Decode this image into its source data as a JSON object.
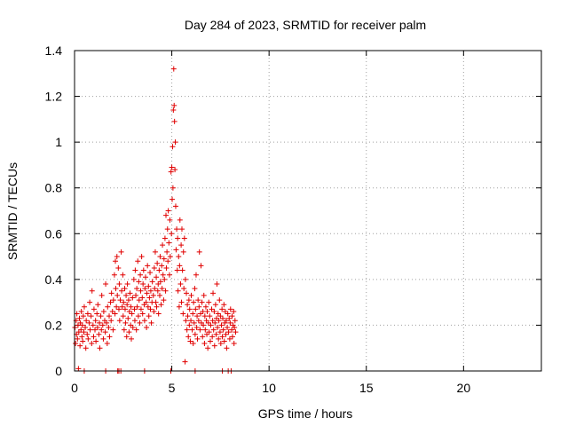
{
  "chart_data": {
    "type": "scatter",
    "title": "Day 284 of 2023, SRMTID for receiver palm",
    "xlabel": "GPS time / hours",
    "ylabel": "SRMTID / TECUs",
    "xlim": [
      0,
      24
    ],
    "ylim": [
      0,
      1.4
    ],
    "xticks": [
      0,
      5,
      10,
      15,
      20
    ],
    "xtick_labels": [
      "0",
      "5",
      "10",
      "15",
      "20"
    ],
    "yticks": [
      0,
      0.2,
      0.4,
      0.6,
      0.8,
      1.0,
      1.2,
      1.4
    ],
    "ytick_labels": [
      "0",
      "0.2",
      "0.4",
      "0.6",
      "0.8",
      "1",
      "1.2",
      "1.4"
    ],
    "grid": true,
    "marker": "plus",
    "color": "#e00000",
    "series": [
      {
        "name": "SRMTID",
        "points": [
          [
            0.02,
            0.19
          ],
          [
            0.05,
            0.12
          ],
          [
            0.08,
            0.22
          ],
          [
            0.1,
            0.16
          ],
          [
            0.12,
            0.25
          ],
          [
            0.15,
            0.14
          ],
          [
            0.18,
            0.2
          ],
          [
            0.2,
            0.01
          ],
          [
            0.22,
            0.17
          ],
          [
            0.25,
            0.23
          ],
          [
            0.28,
            0.11
          ],
          [
            0.3,
            0.21
          ],
          [
            0.33,
            0.18
          ],
          [
            0.35,
            0.26
          ],
          [
            0.38,
            0.15
          ],
          [
            0.4,
            0.2
          ],
          [
            0.42,
            0.13
          ],
          [
            0.45,
            0.24
          ],
          [
            0.48,
            0.17
          ],
          [
            0.5,
            0.28
          ],
          [
            0.55,
            0.19
          ],
          [
            0.58,
            0.1
          ],
          [
            0.6,
            0.22
          ],
          [
            0.65,
            0.16
          ],
          [
            0.68,
            0.25
          ],
          [
            0.7,
            0.14
          ],
          [
            0.75,
            0.21
          ],
          [
            0.78,
            0.3
          ],
          [
            0.8,
            0.18
          ],
          [
            0.85,
            0.24
          ],
          [
            0.88,
            0.12
          ],
          [
            0.9,
            0.35
          ],
          [
            0.95,
            0.2
          ],
          [
            0.98,
            0.15
          ],
          [
            1.0,
            0.27
          ],
          [
            1.05,
            0.18
          ],
          [
            1.08,
            0.22
          ],
          [
            1.1,
            0.13
          ],
          [
            1.15,
            0.25
          ],
          [
            1.18,
            0.19
          ],
          [
            1.2,
            0.29
          ],
          [
            1.25,
            0.16
          ],
          [
            1.28,
            0.21
          ],
          [
            1.3,
            0.1
          ],
          [
            1.35,
            0.24
          ],
          [
            1.38,
            0.18
          ],
          [
            1.4,
            0.33
          ],
          [
            1.45,
            0.2
          ],
          [
            1.48,
            0.14
          ],
          [
            1.5,
            0.26
          ],
          [
            1.55,
            0.22
          ],
          [
            1.58,
            0.17
          ],
          [
            1.6,
            0.38
          ],
          [
            1.65,
            0.21
          ],
          [
            1.68,
            0.12
          ],
          [
            1.7,
            0.28
          ],
          [
            1.75,
            0.19
          ],
          [
            1.78,
            0.24
          ],
          [
            1.8,
            0.15
          ],
          [
            1.85,
            0.3
          ],
          [
            1.88,
            0.22
          ],
          [
            1.9,
            0.34
          ],
          [
            1.95,
            0.26
          ],
          [
            1.98,
            0.18
          ],
          [
            2.0,
            0.31
          ],
          [
            2.05,
            0.42
          ],
          [
            2.08,
            0.25
          ],
          [
            2.1,
            0.48
          ],
          [
            2.12,
            0.36
          ],
          [
            2.15,
            0.28
          ],
          [
            2.18,
            0.5
          ],
          [
            2.2,
            0.33
          ],
          [
            2.22,
            0.0
          ],
          [
            2.25,
            0.45
          ],
          [
            2.28,
            0.27
          ],
          [
            2.3,
            0.38
          ],
          [
            2.32,
            0.22
          ],
          [
            2.35,
            0.31
          ],
          [
            2.38,
            0.0
          ],
          [
            2.4,
            0.52
          ],
          [
            2.42,
            0.35
          ],
          [
            2.45,
            0.28
          ],
          [
            2.48,
            0.42
          ],
          [
            2.5,
            0.24
          ],
          [
            2.52,
            0.3
          ],
          [
            2.55,
            0.18
          ],
          [
            2.58,
            0.36
          ],
          [
            2.6,
            0.27
          ],
          [
            2.62,
            0.21
          ],
          [
            2.65,
            0.33
          ],
          [
            2.68,
            0.15
          ],
          [
            2.7,
            0.29
          ],
          [
            2.72,
            0.38
          ],
          [
            2.75,
            0.23
          ],
          [
            2.78,
            0.31
          ],
          [
            2.8,
            0.17
          ],
          [
            2.82,
            0.26
          ],
          [
            2.85,
            0.34
          ],
          [
            2.88,
            0.2
          ],
          [
            2.9,
            0.28
          ],
          [
            2.92,
            0.14
          ],
          [
            2.95,
            0.25
          ],
          [
            2.98,
            0.32
          ],
          [
            3.0,
            0.19
          ],
          [
            3.05,
            0.4
          ],
          [
            3.08,
            0.27
          ],
          [
            3.1,
            0.22
          ],
          [
            3.12,
            0.44
          ],
          [
            3.15,
            0.33
          ],
          [
            3.18,
            0.18
          ],
          [
            3.2,
            0.36
          ],
          [
            3.22,
            0.28
          ],
          [
            3.25,
            0.48
          ],
          [
            3.28,
            0.24
          ],
          [
            3.3,
            0.39
          ],
          [
            3.32,
            0.31
          ],
          [
            3.35,
            0.21
          ],
          [
            3.38,
            0.42
          ],
          [
            3.4,
            0.35
          ],
          [
            3.42,
            0.27
          ],
          [
            3.45,
            0.5
          ],
          [
            3.48,
            0.32
          ],
          [
            3.5,
            0.25
          ],
          [
            3.52,
            0.38
          ],
          [
            3.55,
            0.44
          ],
          [
            3.58,
            0.29
          ],
          [
            3.6,
            0.22
          ],
          [
            3.62,
            0.36
          ],
          [
            3.65,
            0.41
          ],
          [
            3.68,
            0.3
          ],
          [
            3.7,
            0.19
          ],
          [
            3.72,
            0.34
          ],
          [
            3.75,
            0.46
          ],
          [
            3.78,
            0.28
          ],
          [
            3.8,
            0.37
          ],
          [
            3.82,
            0.24
          ],
          [
            3.85,
            0.32
          ],
          [
            3.88,
            0.43
          ],
          [
            3.9,
            0.27
          ],
          [
            3.92,
            0.35
          ],
          [
            3.95,
            0.21
          ],
          [
            3.98,
            0.3
          ],
          [
            4.0,
            0.39
          ],
          [
            4.05,
            0.33
          ],
          [
            4.08,
            0.26
          ],
          [
            4.1,
            0.45
          ],
          [
            4.12,
            0.36
          ],
          [
            4.15,
            0.52
          ],
          [
            4.18,
            0.3
          ],
          [
            4.2,
            0.41
          ],
          [
            4.22,
            0.28
          ],
          [
            4.25,
            0.47
          ],
          [
            4.28,
            0.35
          ],
          [
            4.3,
            0.38
          ],
          [
            4.32,
            0.25
          ],
          [
            4.35,
            0.44
          ],
          [
            4.38,
            0.33
          ],
          [
            4.4,
            0.5
          ],
          [
            4.42,
            0.39
          ],
          [
            4.45,
            0.29
          ],
          [
            4.48,
            0.46
          ],
          [
            4.5,
            0.36
          ],
          [
            4.52,
            0.55
          ],
          [
            4.55,
            0.42
          ],
          [
            4.58,
            0.31
          ],
          [
            4.6,
            0.49
          ],
          [
            4.62,
            0.4
          ],
          [
            4.65,
            0.58
          ],
          [
            4.68,
            0.35
          ],
          [
            4.7,
            0.68
          ],
          [
            4.72,
            0.45
          ],
          [
            4.75,
            0.52
          ],
          [
            4.78,
            0.62
          ],
          [
            4.8,
            0.48
          ],
          [
            4.82,
            0.7
          ],
          [
            4.85,
            0.56
          ],
          [
            4.88,
            0.42
          ],
          [
            4.9,
            0.66
          ],
          [
            4.92,
            0.5
          ],
          [
            4.95,
            0.0
          ],
          [
            4.96,
            0.87
          ],
          [
            4.98,
            0.6
          ],
          [
            5.0,
            0.89
          ],
          [
            5.02,
            0.75
          ],
          [
            5.04,
            0.98
          ],
          [
            5.06,
            0.8
          ],
          [
            5.08,
            1.14
          ],
          [
            5.1,
            1.32
          ],
          [
            5.12,
            1.16
          ],
          [
            5.14,
            1.09
          ],
          [
            5.16,
            0.88
          ],
          [
            5.18,
            1.0
          ],
          [
            5.2,
            0.72
          ],
          [
            5.22,
            0.53
          ],
          [
            5.25,
            0.62
          ],
          [
            5.28,
            0.44
          ],
          [
            5.3,
            0.58
          ],
          [
            5.32,
            0.35
          ],
          [
            5.35,
            0.5
          ],
          [
            5.38,
            0.28
          ],
          [
            5.4,
            0.46
          ],
          [
            5.42,
            0.66
          ],
          [
            5.45,
            0.38
          ],
          [
            5.48,
            0.55
          ],
          [
            5.5,
            0.3
          ],
          [
            5.52,
            0.62
          ],
          [
            5.55,
            0.44
          ],
          [
            5.58,
            0.25
          ],
          [
            5.6,
            0.52
          ],
          [
            5.62,
            0.36
          ],
          [
            5.65,
            0.58
          ],
          [
            5.68,
            0.04
          ],
          [
            5.7,
            0.4
          ],
          [
            5.72,
            0.22
          ],
          [
            5.75,
            0.34
          ],
          [
            5.78,
            0.18
          ],
          [
            5.8,
            0.29
          ],
          [
            5.82,
            0.24
          ],
          [
            5.85,
            0.15
          ],
          [
            5.88,
            0.31
          ],
          [
            5.9,
            0.2
          ],
          [
            5.92,
            0.27
          ],
          [
            5.95,
            0.13
          ],
          [
            5.98,
            0.22
          ],
          [
            6.0,
            0.33
          ],
          [
            6.05,
            0.18
          ],
          [
            6.08,
            0.25
          ],
          [
            6.1,
            0.12
          ],
          [
            6.12,
            0.3
          ],
          [
            6.15,
            0.21
          ],
          [
            6.18,
            0.36
          ],
          [
            6.2,
            0.16
          ],
          [
            6.22,
            0.27
          ],
          [
            6.25,
            0.42
          ],
          [
            6.28,
            0.19
          ],
          [
            6.3,
            0.24
          ],
          [
            6.32,
            0.14
          ],
          [
            6.35,
            0.31
          ],
          [
            6.38,
            0.22
          ],
          [
            6.4,
            0.28
          ],
          [
            6.42,
            0.52
          ],
          [
            6.45,
            0.18
          ],
          [
            6.48,
            0.25
          ],
          [
            6.5,
            0.46
          ],
          [
            6.52,
            0.21
          ],
          [
            6.55,
            0.3
          ],
          [
            6.58,
            0.15
          ],
          [
            6.6,
            0.26
          ],
          [
            6.62,
            0.2
          ],
          [
            6.65,
            0.33
          ],
          [
            6.68,
            0.12
          ],
          [
            6.7,
            0.24
          ],
          [
            6.72,
            0.18
          ],
          [
            6.75,
            0.28
          ],
          [
            6.78,
            0.22
          ],
          [
            6.8,
            0.16
          ],
          [
            6.82,
            0.26
          ],
          [
            6.85,
            0.1
          ],
          [
            6.88,
            0.21
          ],
          [
            6.9,
            0.3
          ],
          [
            6.92,
            0.17
          ],
          [
            6.95,
            0.24
          ],
          [
            6.98,
            0.13
          ],
          [
            7.0,
            0.2
          ],
          [
            7.05,
            0.27
          ],
          [
            7.08,
            0.15
          ],
          [
            7.1,
            0.22
          ],
          [
            7.12,
            0.34
          ],
          [
            7.15,
            0.18
          ],
          [
            7.18,
            0.26
          ],
          [
            7.2,
            0.11
          ],
          [
            7.22,
            0.21
          ],
          [
            7.25,
            0.29
          ],
          [
            7.28,
            0.16
          ],
          [
            7.3,
            0.23
          ],
          [
            7.32,
            0.38
          ],
          [
            7.35,
            0.19
          ],
          [
            7.38,
            0.25
          ],
          [
            7.4,
            0.14
          ],
          [
            7.42,
            0.22
          ],
          [
            7.45,
            0.31
          ],
          [
            7.48,
            0.17
          ],
          [
            7.5,
            0.24
          ],
          [
            7.52,
            0.12
          ],
          [
            7.55,
            0.2
          ],
          [
            7.58,
            0.27
          ],
          [
            7.6,
            0.15
          ],
          [
            7.62,
            0.23
          ],
          [
            7.65,
            0.18
          ],
          [
            7.68,
            0.29
          ],
          [
            7.7,
            0.13
          ],
          [
            7.72,
            0.21
          ],
          [
            7.75,
            0.26
          ],
          [
            7.78,
            0.16
          ],
          [
            7.8,
            0.22
          ],
          [
            7.82,
            0.1
          ],
          [
            7.85,
            0.19
          ],
          [
            7.88,
            0.25
          ],
          [
            7.9,
            0.0
          ],
          [
            7.92,
            0.17
          ],
          [
            7.95,
            0.23
          ],
          [
            7.98,
            0.14
          ],
          [
            8.0,
            0.21
          ],
          [
            8.02,
            0.27
          ],
          [
            8.05,
            0.0
          ],
          [
            8.08,
            0.18
          ],
          [
            8.1,
            0.24
          ],
          [
            8.12,
            0.15
          ],
          [
            8.15,
            0.2
          ],
          [
            8.18,
            0.26
          ],
          [
            8.2,
            0.12
          ],
          [
            8.22,
            0.19
          ],
          [
            8.25,
            0.22
          ],
          [
            8.28,
            0.17
          ],
          [
            0.5,
            0.0
          ],
          [
            1.6,
            0.0
          ],
          [
            2.28,
            0.0
          ],
          [
            3.6,
            0.0
          ],
          [
            6.2,
            0.0
          ],
          [
            7.6,
            0.0
          ]
        ]
      }
    ]
  }
}
